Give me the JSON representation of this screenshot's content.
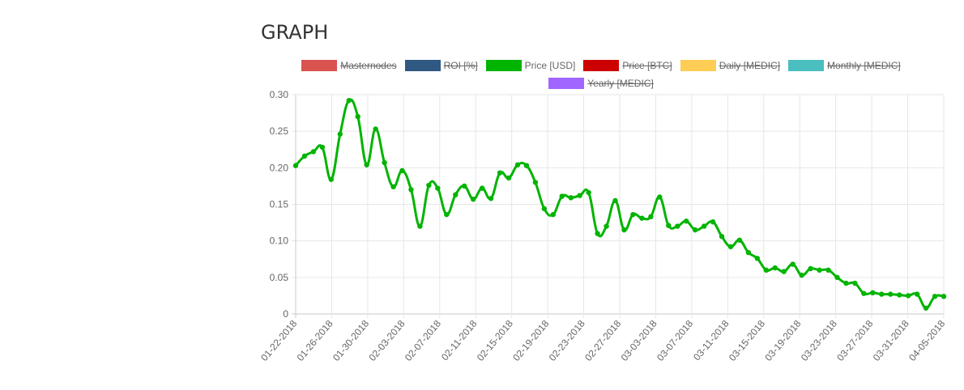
{
  "page": {
    "title": "GRAPH"
  },
  "chart_data": {
    "type": "line",
    "legend": [
      {
        "name": "Masternodes",
        "color": "#d9534f",
        "hidden": true
      },
      {
        "name": "ROI [%]",
        "color": "#2f5883",
        "hidden": true
      },
      {
        "name": "Price [USD]",
        "color": "#00b400",
        "hidden": false
      },
      {
        "name": "Price [BTC]",
        "color": "#cc0000",
        "hidden": true
      },
      {
        "name": "Daily [MEDIC]",
        "color": "#ffcc55",
        "hidden": true
      },
      {
        "name": "Monthly [MEDIC]",
        "color": "#4bbfbf",
        "hidden": true
      },
      {
        "name": "Yearly [MEDIC]",
        "color": "#a066ff",
        "hidden": true
      }
    ],
    "x_ticks": [
      "01-22-2018",
      "01-26-2018",
      "01-30-2018",
      "02-03-2018",
      "02-07-2018",
      "02-11-2018",
      "02-15-2018",
      "02-19-2018",
      "02-23-2018",
      "02-27-2018",
      "03-03-2018",
      "03-07-2018",
      "03-11-2018",
      "03-15-2018",
      "03-19-2018",
      "03-23-2018",
      "03-27-2018",
      "03-31-2018",
      "04-05-2018"
    ],
    "y_ticks": [
      "0",
      "0.05",
      "0.10",
      "0.15",
      "0.20",
      "0.25",
      "0.30"
    ],
    "ylim": [
      0,
      0.3
    ],
    "grid": true,
    "series": [
      {
        "color": "#00b400",
        "values": [
          0.203,
          0.216,
          0.222,
          0.228,
          0.184,
          0.246,
          0.292,
          0.27,
          0.204,
          0.253,
          0.207,
          0.174,
          0.196,
          0.17,
          0.12,
          0.176,
          0.172,
          0.136,
          0.163,
          0.175,
          0.157,
          0.172,
          0.158,
          0.193,
          0.186,
          0.204,
          0.203,
          0.18,
          0.144,
          0.136,
          0.161,
          0.159,
          0.162,
          0.166,
          0.11,
          0.12,
          0.155,
          0.115,
          0.136,
          0.131,
          0.133,
          0.16,
          0.121,
          0.12,
          0.127,
          0.115,
          0.12,
          0.126,
          0.106,
          0.092,
          0.101,
          0.084,
          0.076,
          0.06,
          0.063,
          0.058,
          0.068,
          0.053,
          0.062,
          0.06,
          0.06,
          0.05,
          0.042,
          0.042,
          0.028,
          0.029,
          0.027,
          0.027,
          0.026,
          0.025,
          0.027,
          0.008,
          0.024,
          0.024
        ]
      }
    ]
  }
}
